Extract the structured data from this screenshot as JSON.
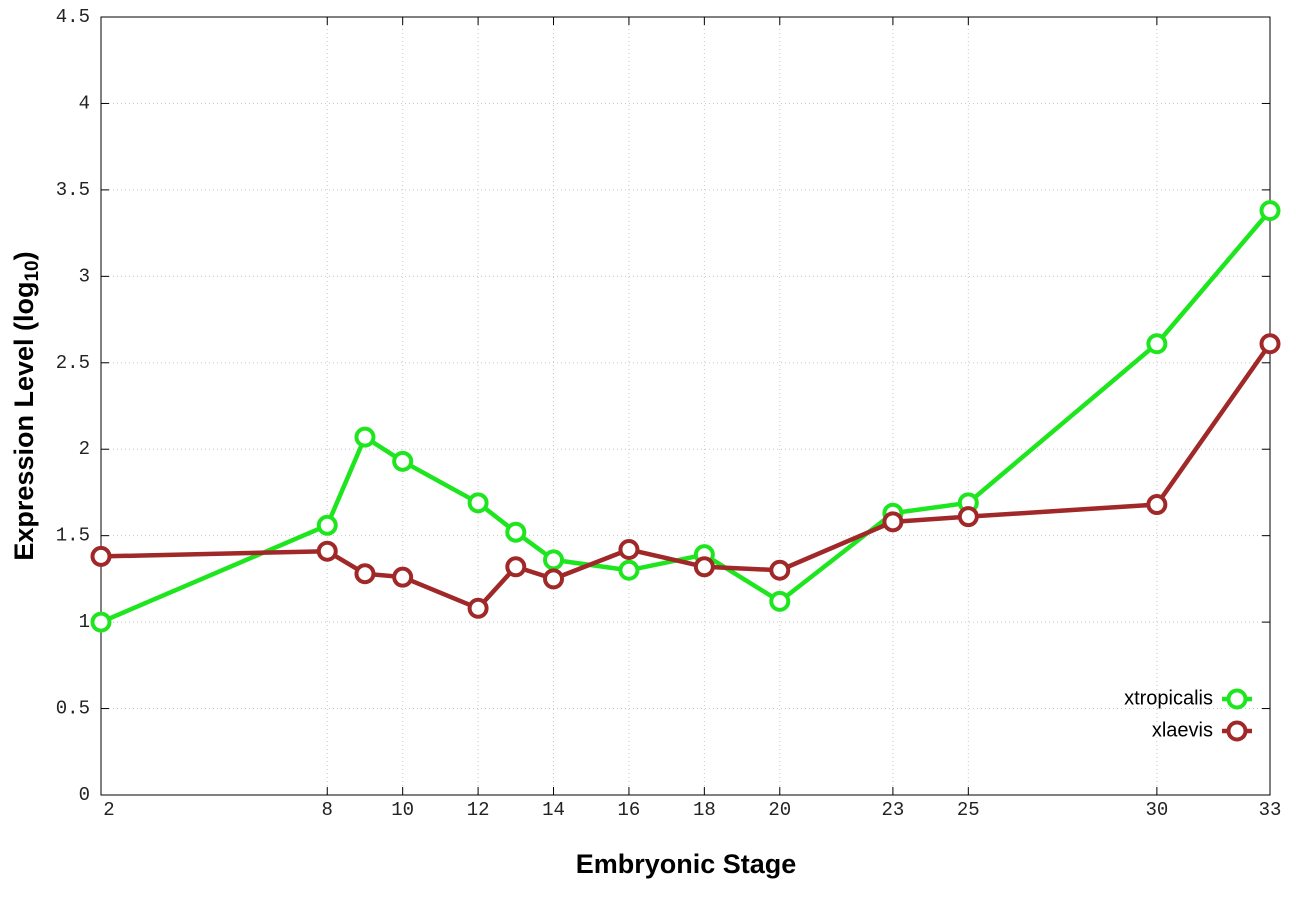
{
  "chart_data": {
    "type": "line",
    "x_label": "Embryonic Stage",
    "y_label": "Expression Level (log",
    "y_label_subscript": "10",
    "y_label_end": ")",
    "x": [
      2,
      8,
      9,
      10,
      12,
      13,
      14,
      16,
      18,
      20,
      23,
      25,
      30,
      33
    ],
    "series": [
      {
        "name": "xtropicalis",
        "color": "#1ee61e",
        "values": [
          1.0,
          1.56,
          2.07,
          1.93,
          1.69,
          1.52,
          1.36,
          1.3,
          1.39,
          1.12,
          1.63,
          1.69,
          2.61,
          3.38
        ]
      },
      {
        "name": "xlaevis",
        "color": "#a02828",
        "values": [
          1.38,
          1.41,
          1.28,
          1.26,
          1.08,
          1.32,
          1.25,
          1.42,
          1.32,
          1.3,
          1.58,
          1.61,
          1.68,
          2.61
        ]
      }
    ],
    "xlim": [
      2,
      33
    ],
    "xticks": [
      2,
      8,
      10,
      12,
      14,
      16,
      18,
      20,
      23,
      25,
      30,
      33
    ],
    "ylim": [
      0,
      4.5
    ],
    "yticks": [
      0,
      0.5,
      1,
      1.5,
      2,
      2.5,
      3,
      3.5,
      4,
      4.5
    ],
    "grid": true,
    "legend": "bottom-right"
  }
}
